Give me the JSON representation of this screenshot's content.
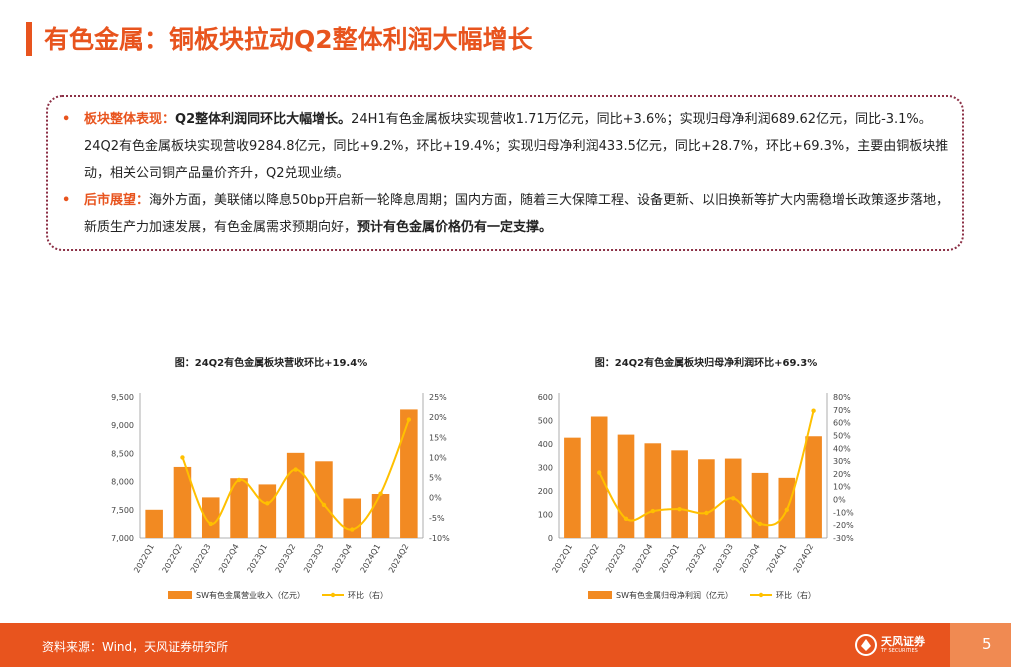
{
  "title": "有色金属：铜板块拉动Q2整体利润大幅增长",
  "bullets": [
    {
      "label": "板块整体表现：",
      "lead_bold": "Q2整体利润同环比大幅增长。",
      "text": "24H1有色金属板块实现营收1.71万亿元，同比+3.6%；实现归母净利润689.62亿元，同比-3.1%。24Q2有色金属板块实现营收9284.8亿元，同比+9.2%，环比+19.4%；实现归母净利润433.5亿元，同比+28.7%，环比+69.3%，主要由铜板块推动，相关公司铜产品量价齐升，Q2兑现业绩。",
      "tail_bold": ""
    },
    {
      "label": "后市展望：",
      "lead_bold": "",
      "text": "海外方面，美联储以降息50bp开启新一轮降息周期；国内方面，随着三大保障工程、设备更新、以旧换新等扩大内需稳增长政策逐步落地，新质生产力加速发展，有色金属需求预期向好，",
      "tail_bold": "预计有色金属价格仍有一定支撑。"
    }
  ],
  "chart_data": [
    {
      "type": "bar",
      "title": "图：24Q2有色金属板块营收环比+19.4%",
      "categories": [
        "2022Q1",
        "2022Q2",
        "2022Q3",
        "2022Q4",
        "2023Q1",
        "2023Q2",
        "2023Q3",
        "2023Q4",
        "2024Q1",
        "2024Q2"
      ],
      "series": [
        {
          "name": "SW有色金属营业收入（亿元）",
          "type": "bar",
          "axis": "left",
          "values": [
            7500,
            8260,
            7720,
            8060,
            7950,
            8510,
            8360,
            7700,
            7780,
            9280
          ]
        },
        {
          "name": "环比（右）",
          "type": "line",
          "axis": "right",
          "values": [
            null,
            10,
            -6.5,
            4.4,
            -1.4,
            7.0,
            -1.8,
            -7.9,
            1.0,
            19.4
          ]
        }
      ],
      "ylim": [
        7000,
        9500
      ],
      "yticks": [
        "7,000",
        "7,500",
        "8,000",
        "8,500",
        "9,000",
        "9,500"
      ],
      "y2lim": [
        -10,
        25
      ],
      "y2ticks": [
        "-10%",
        "-5%",
        "0%",
        "5%",
        "10%",
        "15%",
        "20%",
        "25%"
      ],
      "colors": {
        "bar": "#f28a22",
        "line": "#ffc000"
      }
    },
    {
      "type": "bar",
      "title": "图：24Q2有色金属板块归母净利润环比+69.3%",
      "categories": [
        "2022Q1",
        "2022Q2",
        "2022Q3",
        "2022Q4",
        "2023Q1",
        "2023Q2",
        "2023Q3",
        "2023Q4",
        "2024Q1",
        "2024Q2"
      ],
      "series": [
        {
          "name": "SW有色金属归母净利润（亿元）",
          "type": "bar",
          "axis": "left",
          "values": [
            427,
            517,
            440,
            403,
            373,
            335,
            338,
            277,
            256,
            433
          ]
        },
        {
          "name": "环比（右）",
          "type": "line",
          "axis": "right",
          "values": [
            null,
            21,
            -15,
            -9,
            -7.5,
            -10.5,
            1,
            -19,
            -8,
            69.3
          ]
        }
      ],
      "ylim": [
        0,
        600
      ],
      "yticks": [
        "0",
        "100",
        "200",
        "300",
        "400",
        "500",
        "600"
      ],
      "y2lim": [
        -30,
        80
      ],
      "y2ticks": [
        "-30%",
        "-20%",
        "-10%",
        "0%",
        "10%",
        "20%",
        "30%",
        "40%",
        "50%",
        "60%",
        "70%",
        "80%"
      ],
      "colors": {
        "bar": "#f28a22",
        "line": "#ffc000"
      }
    }
  ],
  "footer": {
    "source": "资料来源：Wind，天风证券研究所",
    "logo_name": "天风证券",
    "logo_sub": "TF SECURITIES",
    "page_number": "5"
  }
}
